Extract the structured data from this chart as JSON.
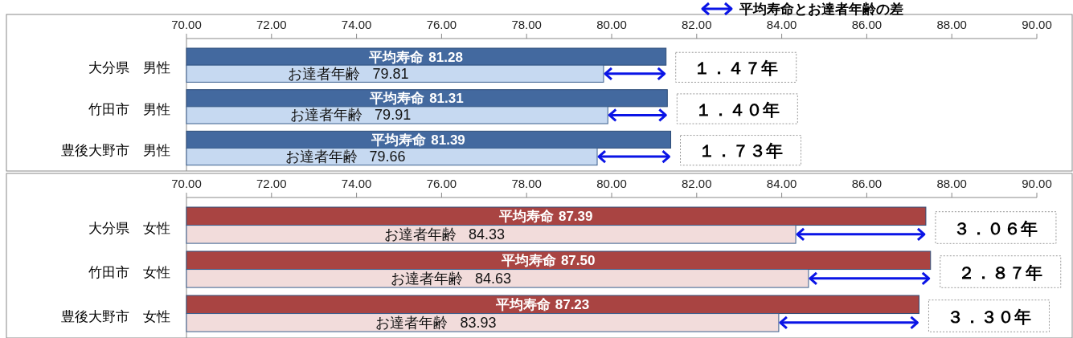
{
  "chart_data": [
    {
      "type": "bar",
      "orientation": "horizontal",
      "categories": [
        "大分県　男性",
        "竹田市　男性",
        "豊後大野市　男性"
      ],
      "series": [
        {
          "name": "平均寿命",
          "color": "#43699f",
          "values": [
            81.28,
            81.31,
            81.39
          ],
          "value_labels": [
            "81.28",
            "81.31",
            "81.39"
          ]
        },
        {
          "name": "お達者年齢",
          "color": "#c6d9f1",
          "values": [
            79.81,
            79.91,
            79.66
          ],
          "value_labels": [
            "79.81",
            "79.91",
            "79.66"
          ]
        }
      ],
      "xlim": [
        70,
        90
      ],
      "xticks": [
        {
          "value": 70,
          "label": "70.00"
        },
        {
          "value": 72,
          "label": "72.00"
        },
        {
          "value": 74,
          "label": "74.00"
        },
        {
          "value": 76,
          "label": "76.00"
        },
        {
          "value": 78,
          "label": "78.00"
        },
        {
          "value": 80,
          "label": "80.00"
        },
        {
          "value": 82,
          "label": "82.00"
        },
        {
          "value": 84,
          "label": "84.00"
        },
        {
          "value": 86,
          "label": "86.00"
        },
        {
          "value": 88,
          "label": "88.00"
        },
        {
          "value": 90,
          "label": "90.00"
        }
      ],
      "annotations": [
        "平均寿命とお達者年齢の差",
        "１．４７年",
        "１．４０年",
        "１．７３年"
      ]
    },
    {
      "type": "bar",
      "orientation": "horizontal",
      "categories": [
        "大分県　女性",
        "竹田市　女性",
        "豊後大野市　女性"
      ],
      "series": [
        {
          "name": "平均寿命",
          "color": "#a94442",
          "values": [
            87.39,
            87.5,
            87.23
          ],
          "value_labels": [
            "87.39",
            "87.50",
            "87.23"
          ]
        },
        {
          "name": "お達者年齢",
          "color": "#f2dcdb",
          "values": [
            84.33,
            84.63,
            83.93
          ],
          "value_labels": [
            "84.33",
            "84.63",
            "83.93"
          ]
        }
      ],
      "xlim": [
        70,
        90
      ],
      "xticks": [
        {
          "value": 70,
          "label": "70.00"
        },
        {
          "value": 72,
          "label": "72.00"
        },
        {
          "value": 74,
          "label": "74.00"
        },
        {
          "value": 76,
          "label": "76.00"
        },
        {
          "value": 78,
          "label": "78.00"
        },
        {
          "value": 80,
          "label": "80.00"
        },
        {
          "value": 82,
          "label": "82.00"
        },
        {
          "value": 84,
          "label": "84.00"
        },
        {
          "value": 86,
          "label": "86.00"
        },
        {
          "value": 88,
          "label": "88.00"
        },
        {
          "value": 90,
          "label": "90.00"
        }
      ],
      "annotations": [
        "３．０６年",
        "２．８７年",
        "３．３０年"
      ]
    }
  ]
}
